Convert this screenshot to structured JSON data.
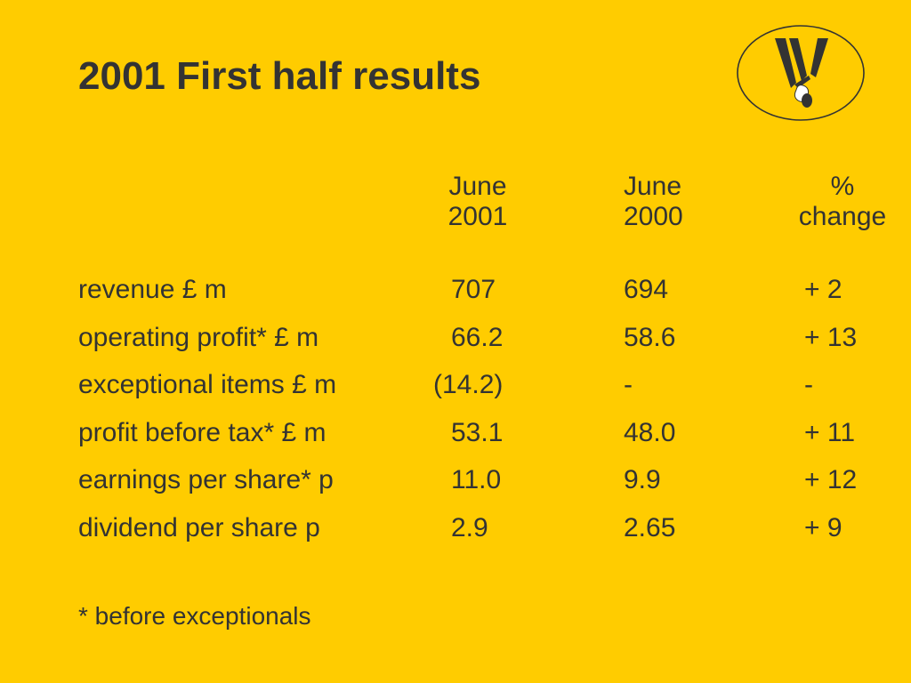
{
  "title": "2001 First half results",
  "colors": {
    "background": "#ffcc00",
    "text": "#333333"
  },
  "logo": {
    "icon": "w-logo-icon"
  },
  "columns": [
    {
      "line1": "June",
      "line2": "2001"
    },
    {
      "line1": "June",
      "line2": "2000"
    },
    {
      "line1": "%",
      "line2": "change"
    }
  ],
  "rows": [
    {
      "label": "revenue £ m",
      "june2001": "707",
      "june2000": "694",
      "change": "+ 2"
    },
    {
      "label": "operating profit* £ m",
      "june2001": "66.2",
      "june2000": "58.6",
      "change": "+ 13"
    },
    {
      "label": "exceptional items £ m",
      "june2001": "(14.2)",
      "june2000": "-",
      "change": "-"
    },
    {
      "label": "profit before tax* £ m",
      "june2001": "53.1",
      "june2000": "48.0",
      "change": "+ 11"
    },
    {
      "label": "earnings per share* p",
      "june2001": "11.0",
      "june2000": "9.9",
      "change": "+ 12"
    },
    {
      "label": "dividend per share p",
      "june2001": "2.9",
      "june2000": "2.65",
      "change": "+ 9"
    }
  ],
  "footnote": "* before exceptionals"
}
